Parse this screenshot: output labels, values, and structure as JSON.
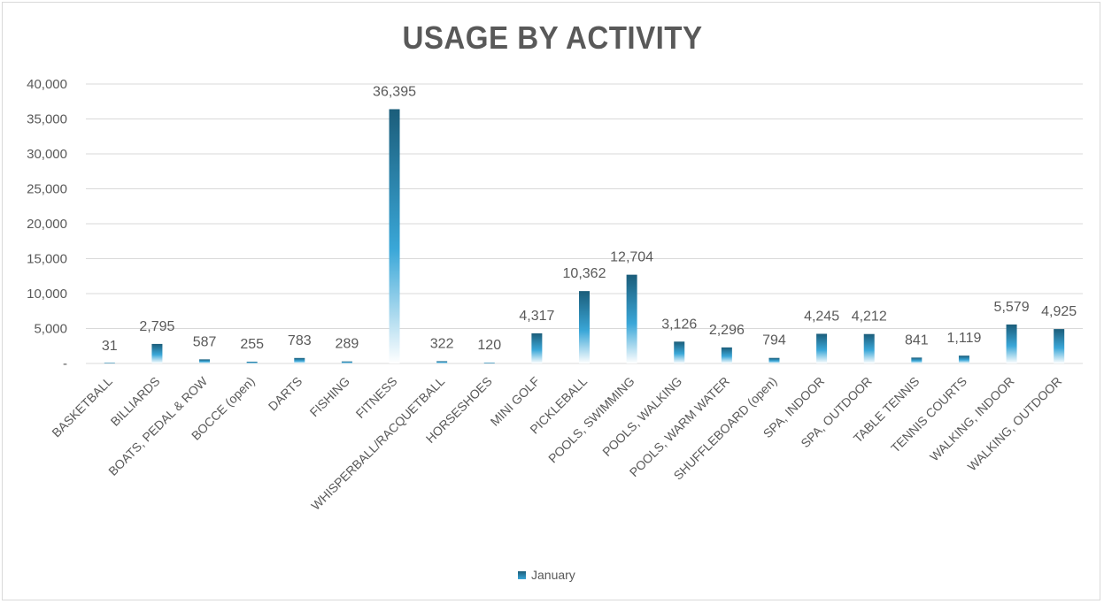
{
  "chart_data": {
    "type": "bar",
    "title": "USAGE BY ACTIVITY",
    "categories": [
      "BASKETBALL",
      "BILLIARDS",
      "BOATS, PEDAL & ROW",
      "BOCCE (open)",
      "DARTS",
      "FISHING",
      "FITNESS",
      "WHISPERBALL/RACQUETBALL",
      "HORSESHOES",
      "MINI GOLF",
      "PICKLEBALL",
      "POOLS, SWIMMING",
      "POOLS, WALKING",
      "POOLS, WARM WATER",
      "SHUFFLEBOARD (open)",
      "SPA, INDOOR",
      "SPA, OUTDOOR",
      "TABLE TENNIS",
      "TENNIS COURTS",
      "WALKING, INDOOR",
      "WALKING, OUTDOOR"
    ],
    "series": [
      {
        "name": "January",
        "values": [
          31,
          2795,
          587,
          255,
          783,
          289,
          36395,
          322,
          120,
          4317,
          10362,
          12704,
          3126,
          2296,
          794,
          4245,
          4212,
          841,
          1119,
          5579,
          4925
        ]
      }
    ],
    "data_labels": [
      "31",
      "2,795",
      "587",
      "255",
      "783",
      "289",
      "36,395",
      "322",
      "120",
      "4,317",
      "10,362",
      "12,704",
      "3,126",
      "2,296",
      "794",
      "4,245",
      "4,212",
      "841",
      "1,119",
      "5,579",
      "4,925"
    ],
    "y_ticks": [
      0,
      5000,
      10000,
      15000,
      20000,
      25000,
      30000,
      35000,
      40000
    ],
    "y_tick_labels": [
      "-",
      "5,000",
      "10,000",
      "15,000",
      "20,000",
      "25,000",
      "30,000",
      "35,000",
      "40,000"
    ],
    "ylim": [
      0,
      40000
    ],
    "grid": true,
    "legend_position": "bottom",
    "colors": {
      "bar_top": "#1b5d7a",
      "bar_mid": "#3aa7d8",
      "bar_bottom": "#ffffff",
      "grid": "#d9d9d9",
      "text": "#595959"
    }
  }
}
